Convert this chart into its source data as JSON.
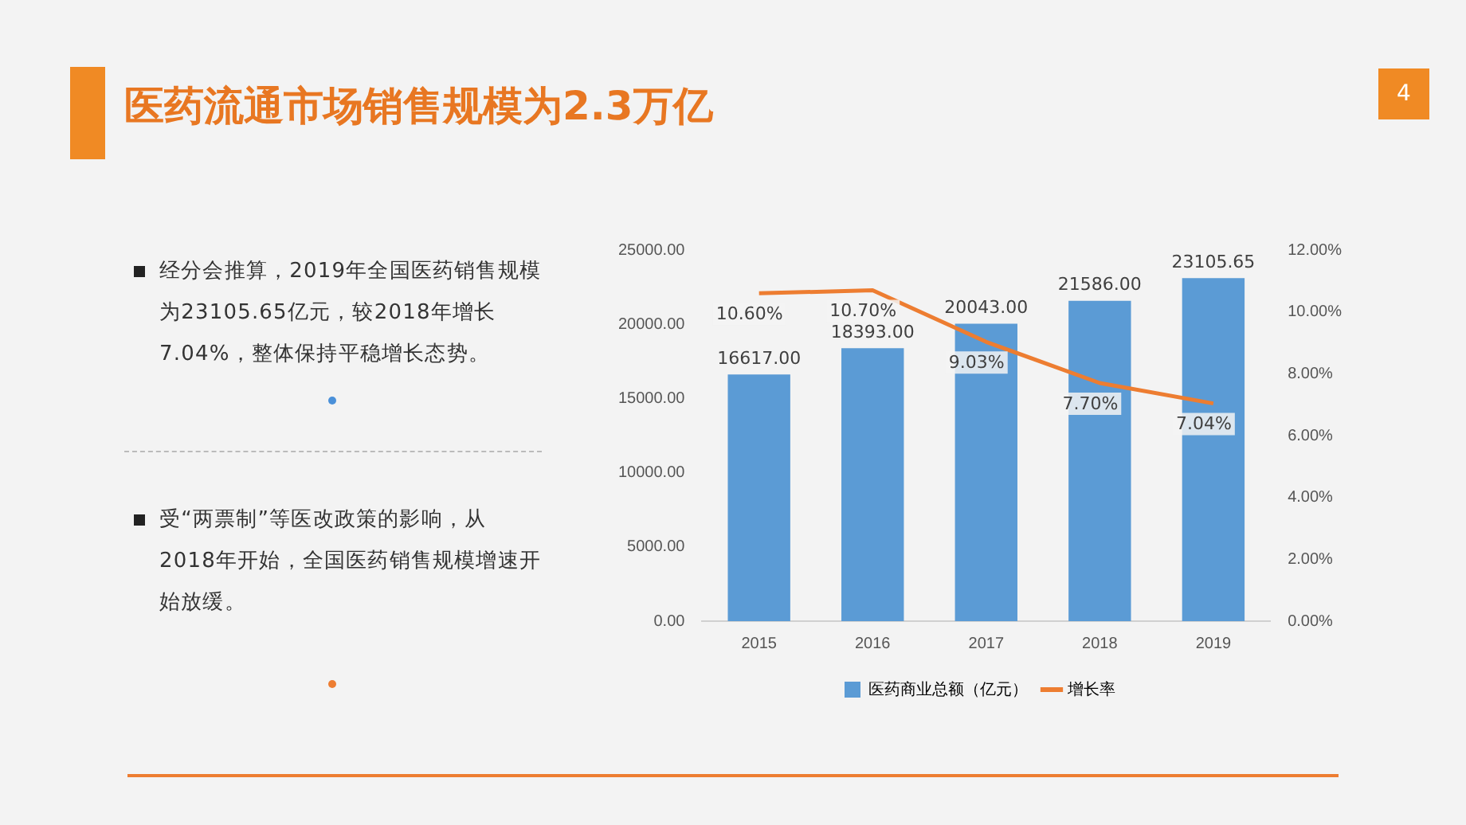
{
  "chart_data": {
    "type": "bar",
    "title": "医药流通市场销售规模为2.3万亿",
    "annotations": [
      "4",
      "经分会推算，2019年全国医药销售规模为23105.65亿元，较2018年增长7.04%，整体保持平稳增长态势。",
      "受“两票制”等医改政策的影响，从2018年开始，全国医药销售规模增速开始放缓。"
    ],
    "categories": [
      "2015",
      "2016",
      "2017",
      "2018",
      "2019"
    ],
    "series": [
      {
        "name": "医药商业总额（亿元）",
        "color": "#5b9bd5",
        "values": [
          16617,
          18393,
          20043,
          21586,
          23105.65
        ],
        "value_labels": [
          "16617.00",
          "18393.00",
          "20043.00",
          "21586.00",
          "23105.65"
        ]
      },
      {
        "name": "增长率",
        "type": "line",
        "axis": "y2",
        "color": "#ed7d31",
        "values": [
          10.6,
          10.7,
          9.03,
          7.7,
          7.04
        ],
        "value_labels": [
          "10.60%",
          "10.70%",
          "9.03%",
          "7.70%",
          "7.04%"
        ]
      }
    ],
    "ylim": [
      0,
      25000
    ],
    "yticks": [
      {
        "value": 0,
        "label": "0.00"
      },
      {
        "value": 5000,
        "label": "5000.00"
      },
      {
        "value": 10000,
        "label": "10000.00"
      },
      {
        "value": 15000,
        "label": "15000.00"
      },
      {
        "value": 20000,
        "label": "20000.00"
      },
      {
        "value": 25000,
        "label": "25000.00"
      }
    ],
    "y2lim": [
      0,
      12
    ],
    "y2ticks": [
      {
        "value": 0,
        "label": "0.00%"
      },
      {
        "value": 2,
        "label": "2.00%"
      },
      {
        "value": 4,
        "label": "4.00%"
      },
      {
        "value": 6,
        "label": "6.00%"
      },
      {
        "value": 8,
        "label": "8.00%"
      },
      {
        "value": 10,
        "label": "10.00%"
      },
      {
        "value": 12,
        "label": "12.00%"
      }
    ],
    "grid": false,
    "legend": "bottom",
    "marker": "none",
    "line_style": "solid"
  }
}
